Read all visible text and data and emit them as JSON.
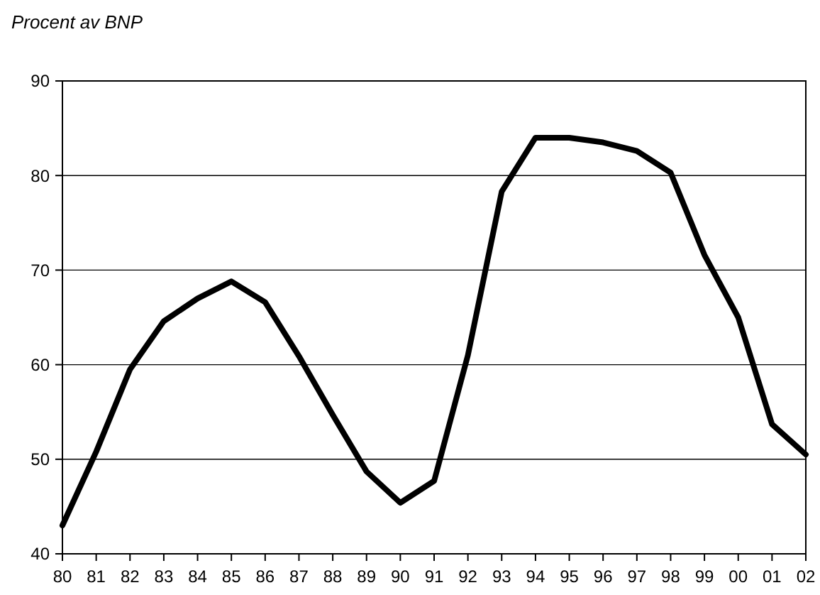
{
  "chart_data": {
    "type": "line",
    "ylabel": "Procent av BNP",
    "categories": [
      "80",
      "81",
      "82",
      "83",
      "84",
      "85",
      "86",
      "87",
      "88",
      "89",
      "90",
      "91",
      "92",
      "93",
      "94",
      "95",
      "96",
      "97",
      "98",
      "99",
      "00",
      "01",
      "02"
    ],
    "series": [
      {
        "color": "#000000",
        "values": [
          43.0,
          50.8,
          59.5,
          64.6,
          67.0,
          68.8,
          66.6,
          60.9,
          54.7,
          48.7,
          45.4,
          47.7,
          61.0,
          78.3,
          84.0,
          84.0,
          83.5,
          82.6,
          80.3,
          71.6,
          65.0,
          53.7,
          50.5
        ]
      }
    ],
    "ylim": [
      40,
      90
    ],
    "yticks": [
      40,
      50,
      60,
      70,
      80,
      90
    ],
    "grid": "y",
    "marker": "none",
    "line_style": "solid"
  }
}
